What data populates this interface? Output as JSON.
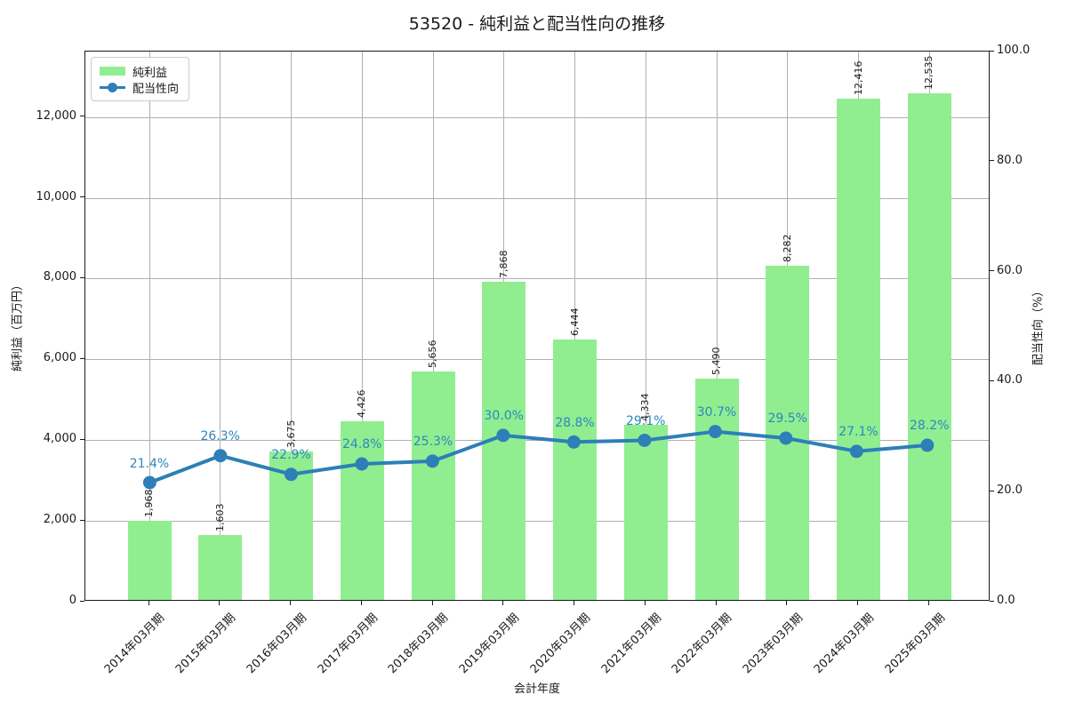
{
  "title": "53520 - 純利益と配当性向の推移",
  "axes": {
    "x_label": "会計年度",
    "y_left_label": "純利益（百万円）",
    "y_right_label": "配当性向（%）",
    "y_left_tick_values": [
      0,
      2000,
      4000,
      6000,
      8000,
      10000,
      12000
    ],
    "y_left_tick_labels": [
      "0",
      "2,000",
      "4,000",
      "6,000",
      "8,000",
      "10,000",
      "12,000"
    ],
    "y_right_tick_values": [
      0,
      20,
      40,
      60,
      80,
      100
    ],
    "y_right_tick_labels": [
      "0.0",
      "20.0",
      "40.0",
      "60.0",
      "80.0",
      "100.0"
    ]
  },
  "legend": {
    "items": [
      {
        "label": "純利益",
        "type": "bar"
      },
      {
        "label": "配当性向",
        "type": "line"
      }
    ]
  },
  "chart_data": {
    "type": "bar+line",
    "categories": [
      "2014年03月期",
      "2015年03月期",
      "2016年03月期",
      "2017年03月期",
      "2018年03月期",
      "2019年03月期",
      "2020年03月期",
      "2021年03月期",
      "2022年03月期",
      "2023年03月期",
      "2024年03月期",
      "2025年03月期"
    ],
    "series": [
      {
        "name": "純利益",
        "type": "bar",
        "axis": "left",
        "unit": "百万円",
        "values": [
          1968,
          1603,
          3675,
          4426,
          5656,
          7868,
          6444,
          4334,
          5490,
          8282,
          12416,
          12535
        ],
        "value_labels": [
          "1,968",
          "1,603",
          "3,675",
          "4,426",
          "5,656",
          "7,868",
          "6,444",
          "4,334",
          "5,490",
          "8,282",
          "12,416",
          "12,535"
        ]
      },
      {
        "name": "配当性向",
        "type": "line",
        "axis": "right",
        "unit": "%",
        "values": [
          21.4,
          26.3,
          22.9,
          24.8,
          25.3,
          30.0,
          28.8,
          29.1,
          30.7,
          29.5,
          27.1,
          28.2
        ],
        "value_labels": [
          "21.4%",
          "26.3%",
          "22.9%",
          "24.8%",
          "25.3%",
          "30.0%",
          "28.8%",
          "29.1%",
          "30.7%",
          "29.5%",
          "27.1%",
          "28.2%"
        ]
      }
    ],
    "ylim_left": [
      0,
      13620
    ],
    "ylim_right": [
      0,
      100
    ],
    "grid": true,
    "legend_position": "upper left"
  },
  "colors": {
    "bar": "#90EE90",
    "line": "#2d7fb8",
    "line_value_label": "#2e86c1",
    "grid": "#b0b0b0",
    "frame": "#1a1a1a",
    "text": "#1a1a1a"
  }
}
